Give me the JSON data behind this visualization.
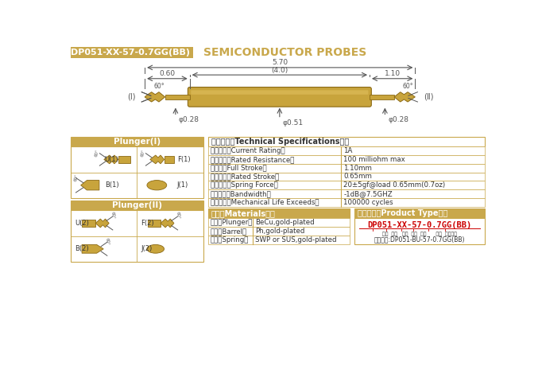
{
  "title_box_text": "DP051-XX-57-0.7GG(BB)",
  "title_main_text": "SEMICONDUCTOR PROBES",
  "gold_color": "#C9A84C",
  "dark_gold": "#8B6914",
  "barrel_color": "#C8A43C",
  "background_color": "#FFFFFF",
  "dark": "#333333",
  "mid": "#555555",
  "red": "#CC0000",
  "spec_title": "技术要求（Technical Specifications）：",
  "specs": [
    [
      "额定电流（Current Rating）",
      "1A"
    ],
    [
      "额定电阻（Rated Resistance）",
      "100 milliohm max"
    ],
    [
      "满行程（Full Stroke）",
      "1.10mm"
    ],
    [
      "额定行程（Rated Stroke）",
      "0.65mm"
    ],
    [
      "额定弹力（Spring Force）",
      "20±5gf@load 0.65mm(0.7oz)"
    ],
    [
      "频率带宽（Bandwidth）",
      "-1dB@7.5GHZ"
    ],
    [
      "测试寿命（Mechanical Life Exceeds）",
      "100000 cycles"
    ]
  ],
  "plunger1_title": "Plunger(I)",
  "plunger2_title": "Plunger(II)",
  "plunger1_labels": [
    [
      "U(1)",
      "F(1)"
    ],
    [
      "B(1)",
      "J(1)"
    ]
  ],
  "plunger2_labels": [
    [
      "U(2)",
      "F(2)"
    ],
    [
      "B(2)",
      "J(2)"
    ]
  ],
  "materials_title": "材质（Materials）：",
  "materials": [
    [
      "针头（Plunger）",
      "BeCu,gold-plated"
    ],
    [
      "针管（Barrel）",
      "Ph,gold-plated"
    ],
    [
      "弹簧（Spring）",
      "SWP or SUS,gold-plated"
    ]
  ],
  "product_type_title": "成品型号（Product Type）：",
  "product_type_code": "DP051-XX-57-0.7GG(BB)",
  "product_type_labels": "系列  规格   头型  总长  弹力      镀金  针头材质",
  "product_type_example": "订购举例:DP051-BU-57-0.7GG(BB)",
  "dim_d028_left": "φ0.28",
  "dim_d051": "φ0.51",
  "dim_d028_right": "φ0.28",
  "dim_060": "0.60",
  "dim_40": "(4.0)",
  "dim_110": "1.10",
  "dim_570": "5.70",
  "angle": "60°",
  "label_I": "(Ⅰ)",
  "label_II": "(Ⅱ)"
}
